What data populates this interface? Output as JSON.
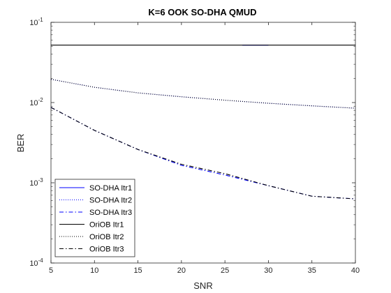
{
  "chart_data": {
    "type": "line",
    "title": "K=6 OOK SO-DHA QMUD",
    "xlabel": "SNR",
    "ylabel": "BER",
    "xlim": [
      5,
      40
    ],
    "ylim": [
      0.0001,
      0.1
    ],
    "yscale": "log",
    "x_ticks": [
      "5",
      "10",
      "15",
      "20",
      "25",
      "30",
      "35",
      "40"
    ],
    "y_ticks": [
      {
        "base": "10",
        "exp": "-4"
      },
      {
        "base": "10",
        "exp": "-3"
      },
      {
        "base": "10",
        "exp": "-2"
      },
      {
        "base": "10",
        "exp": "-1"
      }
    ],
    "legend_position": "bottom-left",
    "x": [
      5,
      10,
      15,
      20,
      25,
      30,
      35,
      40
    ],
    "series": [
      {
        "name": "SO-DHA Itr1",
        "color": "#0000ff",
        "dash": "solid",
        "x": [
          27,
          30
        ],
        "values": [
          0.052,
          0.052
        ]
      },
      {
        "name": "SO-DHA Itr2",
        "color": "#0000ff",
        "dash": "dotted",
        "values": [
          0.0195,
          0.0155,
          0.0132,
          0.0118,
          0.0107,
          0.0098,
          0.0091,
          0.0085
        ]
      },
      {
        "name": "SO-DHA Itr3",
        "color": "#0000ff",
        "dash": "dashdot",
        "values": [
          0.0087,
          0.0045,
          0.0026,
          0.00165,
          0.00125,
          0.00092,
          0.00068,
          0.00063
        ]
      },
      {
        "name": "OriOB Itr1",
        "color": "#000000",
        "dash": "solid",
        "values": [
          0.052,
          0.052,
          0.052,
          0.052,
          0.052,
          0.052,
          0.052,
          0.052
        ]
      },
      {
        "name": "OriOB Itr2",
        "color": "#000000",
        "dash": "dotted",
        "values": [
          0.0195,
          0.0155,
          0.0132,
          0.0118,
          0.0107,
          0.0098,
          0.0091,
          0.0085
        ]
      },
      {
        "name": "OriOB Itr3",
        "color": "#000000",
        "dash": "dashdot",
        "values": [
          0.0087,
          0.0045,
          0.0026,
          0.0017,
          0.0013,
          0.00092,
          0.00068,
          0.00063
        ]
      }
    ],
    "grid": false
  }
}
